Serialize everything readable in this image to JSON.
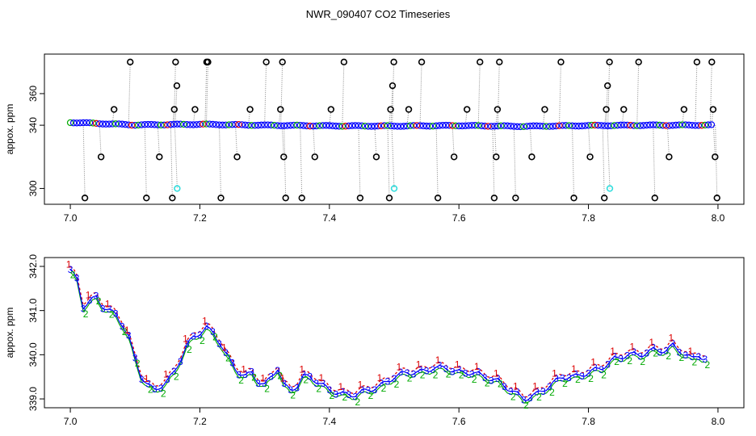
{
  "title": "NWR_090407  CO2 Timeseries",
  "colors": {
    "outlier": "#000000",
    "main": "#0000ff",
    "green": "#00aa00",
    "red": "#dd0000",
    "cyan": "#33dddd",
    "line": "#888888"
  },
  "chart_data": [
    {
      "type": "scatter",
      "ylabel": "appox. ppm",
      "xlim": [
        6.96,
        8.04
      ],
      "ylim": [
        290,
        385
      ],
      "xticks": [
        7.0,
        7.2,
        7.4,
        7.6,
        7.8,
        8.0
      ],
      "xtick_labels": [
        "7.0",
        "7.2",
        "7.4",
        "7.6",
        "7.8",
        "8.0"
      ],
      "yticks": [
        300,
        340,
        360
      ],
      "ytick_labels": [
        "300",
        "340",
        "360"
      ],
      "base": {
        "x": [
          7.0,
          7.1,
          7.2,
          7.3,
          7.4,
          7.5,
          7.6,
          7.7,
          7.8,
          7.9,
          7.99
        ],
        "y": [
          341.8,
          340.2,
          340.6,
          340.0,
          339.6,
          339.5,
          339.8,
          339.3,
          339.8,
          340.0,
          340.1
        ]
      },
      "outliers": {
        "x": [
          7.02,
          7.045,
          7.065,
          7.09,
          7.115,
          7.135,
          7.155,
          7.158,
          7.16,
          7.162,
          7.19,
          7.208,
          7.21,
          7.23,
          7.255,
          7.275,
          7.3,
          7.322,
          7.325,
          7.327,
          7.33,
          7.355,
          7.375,
          7.4,
          7.42,
          7.445,
          7.47,
          7.49,
          7.492,
          7.495,
          7.497,
          7.52,
          7.54,
          7.565,
          7.59,
          7.61,
          7.63,
          7.652,
          7.655,
          7.657,
          7.66,
          7.685,
          7.71,
          7.73,
          7.755,
          7.775,
          7.8,
          7.822,
          7.825,
          7.827,
          7.83,
          7.852,
          7.875,
          7.9,
          7.922,
          7.945,
          7.965,
          7.988,
          7.99,
          7.993,
          7.996
        ],
        "y": [
          294,
          320,
          350,
          380,
          294,
          320,
          294,
          350,
          380,
          365,
          350,
          380,
          380,
          294,
          320,
          350,
          380,
          350,
          380,
          320,
          294,
          294,
          320,
          350,
          380,
          294,
          320,
          294,
          350,
          365,
          380,
          350,
          380,
          294,
          320,
          350,
          380,
          294,
          320,
          350,
          380,
          294,
          320,
          350,
          380,
          294,
          320,
          294,
          350,
          365,
          380,
          350,
          380,
          294,
          320,
          350,
          380,
          380,
          350,
          320,
          294
        ]
      },
      "cyan": {
        "x": [
          7.165,
          7.5,
          7.833
        ],
        "y": [
          300,
          300,
          300
        ]
      }
    },
    {
      "type": "line",
      "ylabel": "appox. ppm",
      "xlim": [
        6.96,
        8.04
      ],
      "ylim": [
        338.8,
        342.2
      ],
      "xticks": [
        7.0,
        7.2,
        7.4,
        7.6,
        7.8,
        8.0
      ],
      "xtick_labels": [
        "7.0",
        "7.2",
        "7.4",
        "7.6",
        "7.8",
        "8.0"
      ],
      "yticks": [
        339.0,
        340.0,
        341.0,
        342.0
      ],
      "ytick_labels": [
        "339.0",
        "340.0",
        "341.0",
        "342.0"
      ],
      "series": [
        {
          "x": [
            7.0,
            7.01,
            7.02,
            7.03,
            7.04,
            7.05,
            7.06,
            7.07,
            7.08,
            7.09,
            7.1,
            7.11,
            7.12,
            7.13,
            7.14,
            7.15,
            7.16,
            7.17,
            7.18,
            7.19,
            7.2,
            7.21,
            7.22,
            7.23,
            7.24,
            7.25,
            7.26,
            7.27,
            7.28,
            7.29,
            7.3,
            7.31,
            7.32,
            7.33,
            7.34,
            7.35,
            7.36,
            7.37,
            7.38,
            7.39,
            7.4,
            7.42,
            7.44,
            7.46,
            7.48,
            7.5,
            7.52,
            7.54,
            7.56,
            7.58,
            7.6,
            7.62,
            7.64,
            7.66,
            7.68,
            7.7,
            7.72,
            7.74,
            7.76,
            7.78,
            7.8,
            7.82,
            7.84,
            7.86,
            7.88,
            7.9,
            7.92,
            7.93,
            7.94,
            7.95,
            7.96,
            7.97,
            7.98
          ],
          "y": [
            341.9,
            341.7,
            341.1,
            341.2,
            341.3,
            341.1,
            341.0,
            340.9,
            340.7,
            340.4,
            339.9,
            339.5,
            339.3,
            339.2,
            339.3,
            339.4,
            339.6,
            339.9,
            340.2,
            340.4,
            340.5,
            340.6,
            340.5,
            340.3,
            340.0,
            339.8,
            339.6,
            339.5,
            339.6,
            339.4,
            339.3,
            339.5,
            339.7,
            339.3,
            339.2,
            339.3,
            339.5,
            339.5,
            339.4,
            339.3,
            339.2,
            339.1,
            339.1,
            339.2,
            339.3,
            339.5,
            339.6,
            339.6,
            339.7,
            339.7,
            339.6,
            339.6,
            339.5,
            339.4,
            339.2,
            339.0,
            339.1,
            339.3,
            339.5,
            339.5,
            339.6,
            339.7,
            339.9,
            340.0,
            340.0,
            340.1,
            340.1,
            340.2,
            340.1,
            340.0,
            339.9,
            340.0,
            339.9
          ]
        }
      ]
    }
  ]
}
